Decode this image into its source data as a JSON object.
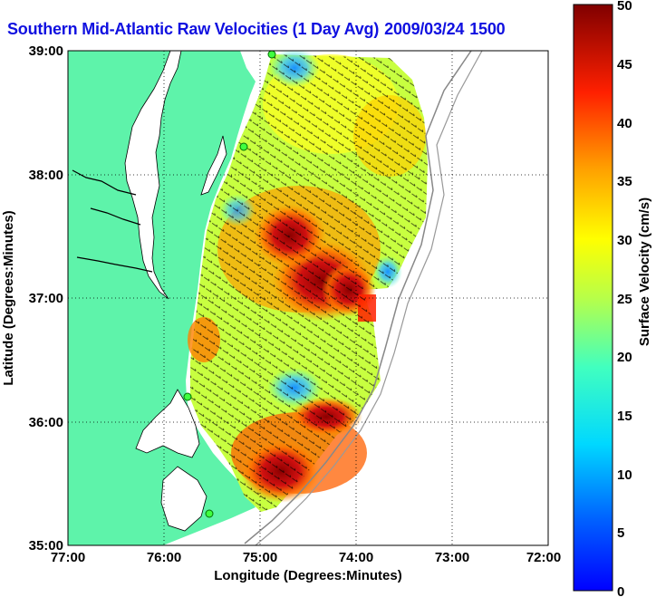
{
  "title": {
    "text": "Southern Mid-Atlantic Raw Velocities (1 Day Avg)",
    "date": "2009/03/24",
    "time": "1500"
  },
  "map": {
    "xlabel": "Longitude (Degrees:Minutes)",
    "ylabel": "Latitude (Degrees:Minutes)",
    "x_ticks": [
      "77:00",
      "76:00",
      "75:00",
      "74:00",
      "73:00",
      "72:00"
    ],
    "y_ticks": [
      "39:00",
      "38:00",
      "37:00",
      "36:00",
      "35:00"
    ],
    "grid": "dotted",
    "land_color": "#5ef3aa",
    "ocean_color": "#ffffff"
  },
  "colorbar": {
    "label": "Surface Velocity (cm/s)",
    "ticks": [
      "50",
      "45",
      "40",
      "35",
      "30",
      "25",
      "20",
      "15",
      "10",
      "5",
      "0"
    ],
    "min": 0,
    "max": 50,
    "colormap": "jet"
  }
}
